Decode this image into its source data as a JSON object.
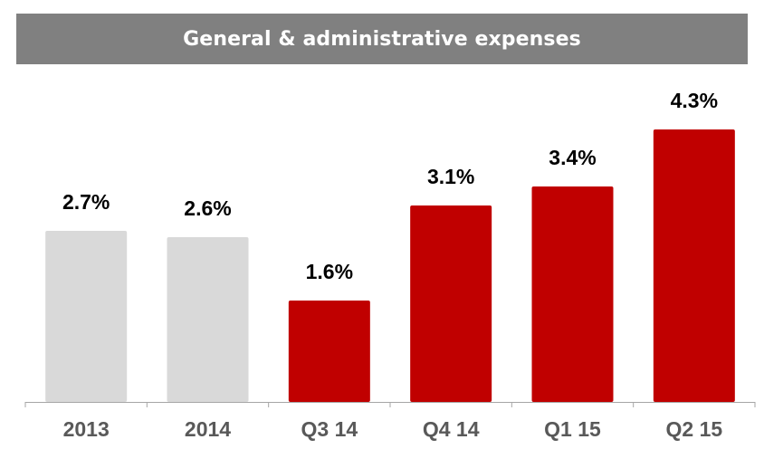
{
  "header": {
    "title": "General & administrative expenses"
  },
  "colors": {
    "title_band": "#808080",
    "historical_bar": "#D9D9D9",
    "quarter_bar": "#C00000",
    "axis": "#A6A6A6",
    "category_text": "#595959",
    "value_text": "#000000"
  },
  "chart_data": {
    "type": "bar",
    "title": "General & administrative expenses",
    "categories": [
      "2013",
      "2014",
      "Q3 14",
      "Q4 14",
      "Q1 15",
      "Q2 15"
    ],
    "values": [
      2.7,
      2.6,
      1.6,
      3.1,
      3.4,
      4.3
    ],
    "value_labels": [
      "2.7%",
      "2.6%",
      "1.6%",
      "3.1%",
      "3.4%",
      "4.3%"
    ],
    "bar_colors": [
      "#D9D9D9",
      "#D9D9D9",
      "#C00000",
      "#C00000",
      "#C00000",
      "#C00000"
    ],
    "unit": "%",
    "xlabel": "",
    "ylabel": "",
    "ylim": [
      0,
      4.3
    ],
    "grid": false,
    "legend": "none"
  }
}
